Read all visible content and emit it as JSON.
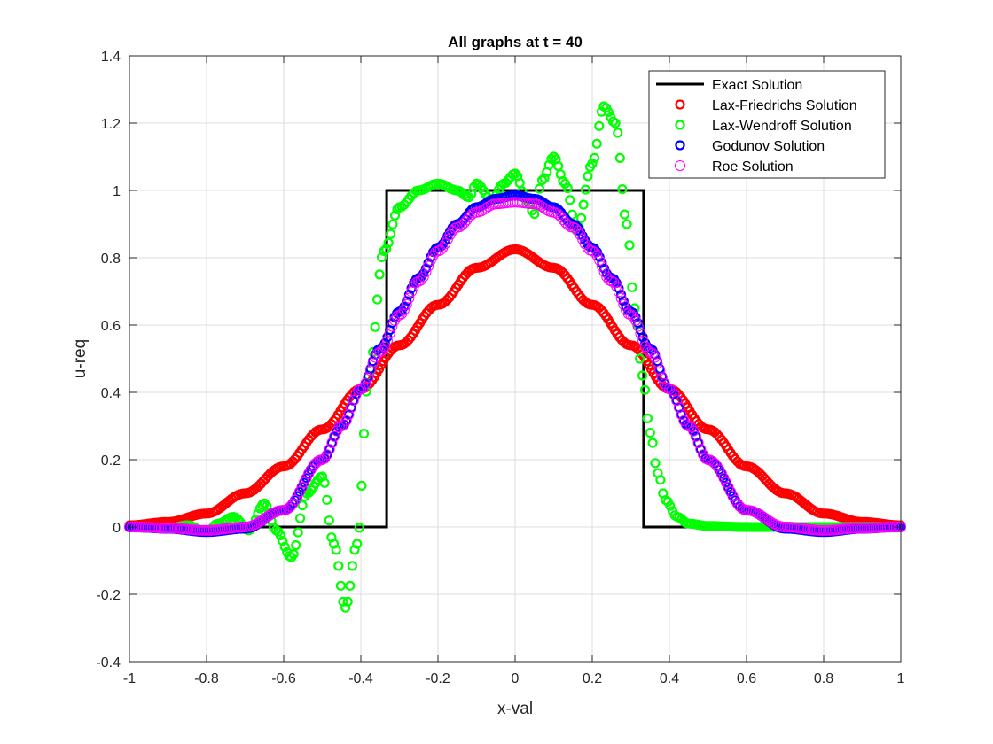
{
  "chart_data": {
    "type": "line",
    "title": "All graphs at t = 40",
    "xlabel": "x-val",
    "ylabel": "u-req",
    "xlim": [
      -1,
      1
    ],
    "ylim": [
      -0.4,
      1.4
    ],
    "xticks": [
      -1,
      -0.8,
      -0.6,
      -0.4,
      -0.2,
      0,
      0.2,
      0.4,
      0.6,
      0.8,
      1
    ],
    "xtick_labels": [
      "-1",
      "-0.8",
      "-0.6",
      "-0.4",
      "-0.2",
      "0",
      "0.2",
      "0.4",
      "0.6",
      "0.8",
      "1"
    ],
    "yticks": [
      -0.4,
      -0.2,
      0,
      0.2,
      0.4,
      0.6,
      0.8,
      1,
      1.2,
      1.4
    ],
    "ytick_labels": [
      "-0.4",
      "-0.2",
      "0",
      "0.2",
      "0.4",
      "0.6",
      "0.8",
      "1",
      "1.2",
      "1.4"
    ],
    "grid": true,
    "legend_position": "top-right",
    "colors": {
      "axes": "#262626",
      "grid": "#dcdcdc",
      "exact": "#000000",
      "lax_friedrichs": "#ff0000",
      "lax_wendroff": "#00ff00",
      "godunov": "#0000ff",
      "roe": "#ff00ff"
    },
    "series": [
      {
        "name": "Exact Solution",
        "style": "line",
        "color": "#000000",
        "x": [
          -1,
          -0.333,
          -0.333,
          0.333,
          0.333,
          1
        ],
        "y": [
          0,
          0,
          1,
          1,
          0,
          0
        ]
      },
      {
        "name": "Lax-Friedrichs Solution",
        "style": "markers",
        "color": "#ff0000",
        "x": [
          -1,
          -0.9,
          -0.8,
          -0.7,
          -0.6,
          -0.5,
          -0.4,
          -0.3,
          -0.2,
          -0.1,
          0,
          0.1,
          0.2,
          0.3,
          0.4,
          0.5,
          0.6,
          0.7,
          0.8,
          0.9,
          1
        ],
        "y": [
          0.005,
          0.015,
          0.04,
          0.1,
          0.18,
          0.29,
          0.41,
          0.54,
          0.66,
          0.77,
          0.825,
          0.77,
          0.66,
          0.54,
          0.41,
          0.29,
          0.18,
          0.1,
          0.04,
          0.015,
          0.005
        ]
      },
      {
        "name": "Lax-Wendroff Solution",
        "style": "markers",
        "color": "#00ff00",
        "x": [
          -1,
          -0.95,
          -0.9,
          -0.85,
          -0.8,
          -0.77,
          -0.73,
          -0.69,
          -0.65,
          -0.62,
          -0.58,
          -0.54,
          -0.5,
          -0.47,
          -0.44,
          -0.41,
          -0.38,
          -0.34,
          -0.3,
          -0.25,
          -0.2,
          -0.15,
          -0.12,
          -0.1,
          -0.06,
          -0.03,
          0,
          0.03,
          0.05,
          0.07,
          0.1,
          0.13,
          0.16,
          0.2,
          0.23,
          0.26,
          0.29,
          0.31,
          0.33,
          0.35,
          0.37,
          0.39,
          0.42,
          0.45,
          0.5,
          0.6,
          0.7,
          0.8,
          0.9,
          1
        ],
        "y": [
          0,
          -0.003,
          -0.005,
          0.005,
          -0.015,
          0.01,
          0.03,
          -0.01,
          0.07,
          -0.01,
          -0.09,
          0.1,
          0.15,
          -0.05,
          -0.24,
          -0.05,
          0.45,
          0.82,
          0.95,
          1.0,
          1.02,
          1.0,
          0.98,
          1.02,
          0.97,
          1.02,
          1.05,
          0.97,
          0.93,
          1.03,
          1.1,
          1.02,
          0.88,
          1.08,
          1.25,
          1.2,
          0.9,
          0.65,
          0.45,
          0.28,
          0.16,
          0.08,
          0.03,
          0.01,
          0.003,
          0,
          0,
          0,
          0,
          0
        ]
      },
      {
        "name": "Godunov Solution",
        "style": "markers",
        "color": "#0000ff",
        "x": [
          -1,
          -0.9,
          -0.8,
          -0.7,
          -0.6,
          -0.5,
          -0.45,
          -0.4,
          -0.35,
          -0.3,
          -0.25,
          -0.2,
          -0.15,
          -0.1,
          -0.05,
          0,
          0.05,
          0.1,
          0.15,
          0.2,
          0.25,
          0.3,
          0.35,
          0.4,
          0.45,
          0.5,
          0.6,
          0.7,
          0.8,
          0.9,
          1
        ],
        "y": [
          0,
          -0.005,
          -0.015,
          -0.005,
          0.05,
          0.2,
          0.3,
          0.41,
          0.53,
          0.64,
          0.74,
          0.83,
          0.9,
          0.95,
          0.975,
          0.985,
          0.975,
          0.95,
          0.9,
          0.83,
          0.74,
          0.64,
          0.53,
          0.41,
          0.3,
          0.2,
          0.05,
          -0.005,
          -0.015,
          -0.005,
          0
        ]
      },
      {
        "name": "Roe Solution",
        "style": "markers",
        "color": "#ff00ff",
        "x": [
          -1,
          -0.9,
          -0.8,
          -0.7,
          -0.6,
          -0.5,
          -0.45,
          -0.4,
          -0.35,
          -0.3,
          -0.25,
          -0.2,
          -0.15,
          -0.1,
          -0.05,
          0,
          0.05,
          0.1,
          0.15,
          0.2,
          0.25,
          0.3,
          0.35,
          0.4,
          0.45,
          0.5,
          0.6,
          0.7,
          0.8,
          0.9,
          1
        ],
        "y": [
          0,
          -0.003,
          -0.01,
          0,
          0.05,
          0.2,
          0.3,
          0.41,
          0.52,
          0.63,
          0.73,
          0.82,
          0.89,
          0.935,
          0.96,
          0.965,
          0.96,
          0.935,
          0.89,
          0.82,
          0.73,
          0.63,
          0.52,
          0.41,
          0.3,
          0.2,
          0.05,
          0,
          -0.01,
          -0.003,
          0
        ]
      }
    ]
  }
}
